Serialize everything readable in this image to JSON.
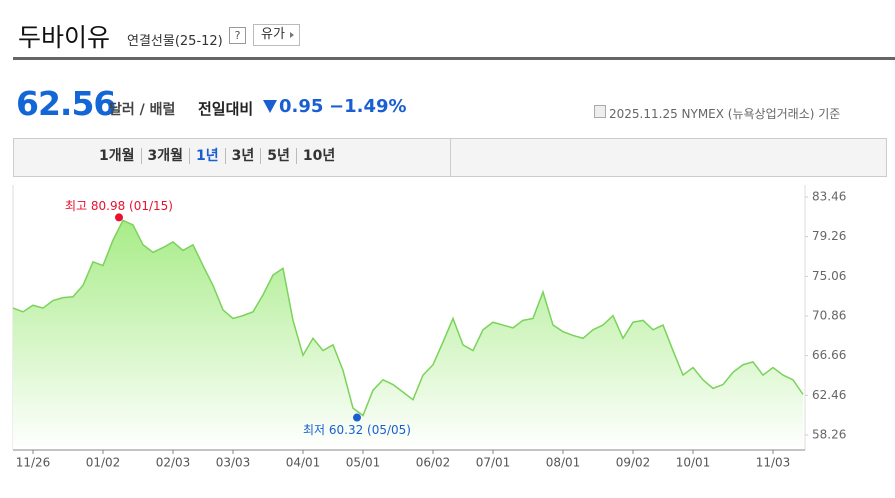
{
  "header": {
    "title": "두바이유",
    "subtitle": "연결선물(25-12)",
    "help": "?",
    "button": "유가"
  },
  "price": {
    "value": "62.56",
    "unit": "달러 / 배럴",
    "change_label": "전일대비",
    "change": "0.95",
    "change_pct": "−1.49%",
    "source": "2025.11.25 NYMEX (뉴욕상업거래소) 기준"
  },
  "tabs": {
    "items": [
      "1개월",
      "3개월",
      "1년",
      "3년",
      "5년",
      "10년"
    ],
    "active": 2
  },
  "chart_data": {
    "type": "area",
    "categories": [
      null,
      null,
      "11/26",
      null,
      null,
      null,
      null,
      null,
      null,
      "01/02",
      null,
      null,
      null,
      null,
      null,
      null,
      "02/03",
      null,
      null,
      null,
      null,
      null,
      "03/03",
      null,
      null,
      null,
      null,
      null,
      null,
      "04/01",
      null,
      null,
      null,
      null,
      null,
      "05/01",
      null,
      null,
      null,
      null,
      null,
      null,
      "06/02",
      null,
      null,
      null,
      null,
      null,
      "07/01",
      null,
      null,
      null,
      null,
      null,
      null,
      "08/01",
      null,
      null,
      null,
      null,
      null,
      null,
      "09/02",
      null,
      null,
      null,
      null,
      null,
      "10/01",
      null,
      null,
      null,
      null,
      null,
      null,
      null,
      "11/03",
      null,
      null,
      null
    ],
    "series": [
      {
        "color": "#7ad35a",
        "values": [
          71.7,
          71.3,
          72.0,
          71.7,
          72.5,
          72.8,
          72.9,
          74.1,
          76.6,
          76.2,
          78.9,
          80.98,
          80.5,
          78.4,
          77.6,
          78.1,
          78.7,
          77.8,
          78.4,
          76.2,
          74.1,
          71.5,
          70.6,
          70.9,
          71.3,
          73.1,
          75.2,
          75.9,
          70.4,
          66.7,
          68.5,
          67.2,
          67.8,
          65.1,
          61.1,
          60.32,
          63.0,
          64.1,
          63.6,
          62.8,
          62.0,
          64.6,
          65.7,
          68.1,
          70.6,
          67.8,
          67.2,
          69.4,
          70.2,
          69.9,
          69.6,
          70.4,
          70.6,
          73.4,
          69.9,
          69.2,
          68.8,
          68.5,
          69.4,
          69.9,
          70.9,
          68.5,
          70.2,
          70.4,
          69.4,
          69.9,
          67.2,
          64.6,
          65.4,
          64.1,
          63.2,
          63.6,
          64.9,
          65.7,
          66.0,
          64.6,
          65.4,
          64.6,
          64.1,
          62.56
        ]
      }
    ],
    "ylim": [
      56.67,
      84.73
    ],
    "yticks": [
      58.26,
      62.46,
      66.66,
      70.86,
      75.06,
      79.26,
      83.46
    ],
    "grid": false,
    "annotations": [
      {
        "text": "최고 80.98 (01/15)",
        "color": "#e8112d"
      },
      {
        "text": "최저 60.32 (05/05)",
        "color": "#1a5fd1"
      }
    ]
  }
}
